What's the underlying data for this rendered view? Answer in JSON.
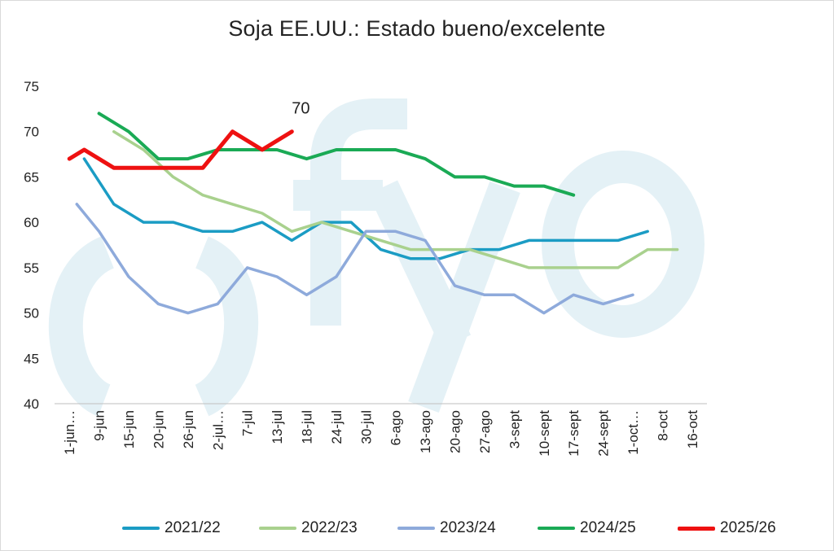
{
  "chart_data": {
    "type": "line",
    "title": "Soja EE.UU.: Estado bueno/excelente",
    "xlabel": "",
    "ylabel": "",
    "ylim": [
      40,
      75
    ],
    "yticks": [
      40,
      45,
      50,
      55,
      60,
      65,
      70,
      75
    ],
    "grid": false,
    "legend_position": "bottom",
    "categories": [
      "1-jun…",
      "9-jun",
      "15-jun",
      "20-jun",
      "26-jun",
      "2-jul…",
      "7-jul",
      "13-jul",
      "18-jul",
      "24-jul",
      "30-jul",
      "6-ago",
      "13-ago",
      "20-ago",
      "27-ago",
      "3-sept",
      "10-sept",
      "17-sept",
      "24-sept",
      "1-oct…",
      "8-oct",
      "16-oct"
    ],
    "series": [
      {
        "name": "2021/22",
        "color": "#1b9cc4",
        "width": 3.5,
        "points": [
          [
            0.5,
            67
          ],
          [
            1.5,
            62
          ],
          [
            2.5,
            60
          ],
          [
            3.5,
            60
          ],
          [
            4.5,
            59
          ],
          [
            5.5,
            59
          ],
          [
            6.5,
            60
          ],
          [
            7.5,
            58
          ],
          [
            8.5,
            60
          ],
          [
            9.5,
            60
          ],
          [
            10.5,
            57
          ],
          [
            11.5,
            56
          ],
          [
            12.5,
            56
          ],
          [
            13.5,
            57
          ],
          [
            14.5,
            57
          ],
          [
            15.5,
            58
          ],
          [
            16.5,
            58
          ],
          [
            17.5,
            58
          ],
          [
            18.5,
            58
          ],
          [
            19.5,
            59
          ]
        ]
      },
      {
        "name": "2022/23",
        "color": "#a9d18e",
        "width": 3.5,
        "points": [
          [
            1.5,
            70
          ],
          [
            2.5,
            68
          ],
          [
            3.5,
            65
          ],
          [
            4.5,
            63
          ],
          [
            5.5,
            62
          ],
          [
            6.5,
            61
          ],
          [
            7.5,
            59
          ],
          [
            8.5,
            60
          ],
          [
            9.5,
            59
          ],
          [
            10.5,
            58
          ],
          [
            11.5,
            57
          ],
          [
            12.5,
            57
          ],
          [
            13.5,
            57
          ],
          [
            14.5,
            56
          ],
          [
            15.5,
            55
          ],
          [
            16.5,
            55
          ],
          [
            17.5,
            55
          ],
          [
            18.5,
            55
          ],
          [
            19.5,
            57
          ],
          [
            20.5,
            57
          ]
        ]
      },
      {
        "name": "2023/24",
        "color": "#8eaadb",
        "width": 3.5,
        "points": [
          [
            0.25,
            62
          ],
          [
            1,
            59
          ],
          [
            2,
            54
          ],
          [
            3,
            51
          ],
          [
            4,
            50
          ],
          [
            5,
            51
          ],
          [
            6,
            55
          ],
          [
            7,
            54
          ],
          [
            8,
            52
          ],
          [
            9,
            54
          ],
          [
            10,
            59
          ],
          [
            11,
            59
          ],
          [
            12,
            58
          ],
          [
            13,
            53
          ],
          [
            14,
            52
          ],
          [
            15,
            52
          ],
          [
            16,
            50
          ],
          [
            17,
            52
          ],
          [
            18,
            51
          ],
          [
            19,
            52
          ]
        ]
      },
      {
        "name": "2024/25",
        "color": "#1aaa55",
        "width": 4,
        "points": [
          [
            1,
            72
          ],
          [
            2,
            70
          ],
          [
            3,
            67
          ],
          [
            4,
            67
          ],
          [
            5,
            68
          ],
          [
            6,
            68
          ],
          [
            7,
            68
          ],
          [
            8,
            67
          ],
          [
            9,
            68
          ],
          [
            10,
            68
          ],
          [
            11,
            68
          ],
          [
            12,
            67
          ],
          [
            13,
            65
          ],
          [
            14,
            65
          ],
          [
            15,
            64
          ],
          [
            16,
            64
          ],
          [
            17,
            63
          ]
        ]
      },
      {
        "name": "2025/26",
        "color": "#ee1111",
        "width": 5,
        "points": [
          [
            0,
            67
          ],
          [
            0.5,
            68
          ],
          [
            1.5,
            66
          ],
          [
            2.5,
            66
          ],
          [
            3.5,
            66
          ],
          [
            4.5,
            66
          ],
          [
            5.5,
            70
          ],
          [
            6.5,
            68
          ],
          [
            7.5,
            70
          ]
        ]
      }
    ],
    "annotations": [
      {
        "text": "70",
        "series": "2025/26"
      }
    ]
  },
  "watermark": "()fyo"
}
